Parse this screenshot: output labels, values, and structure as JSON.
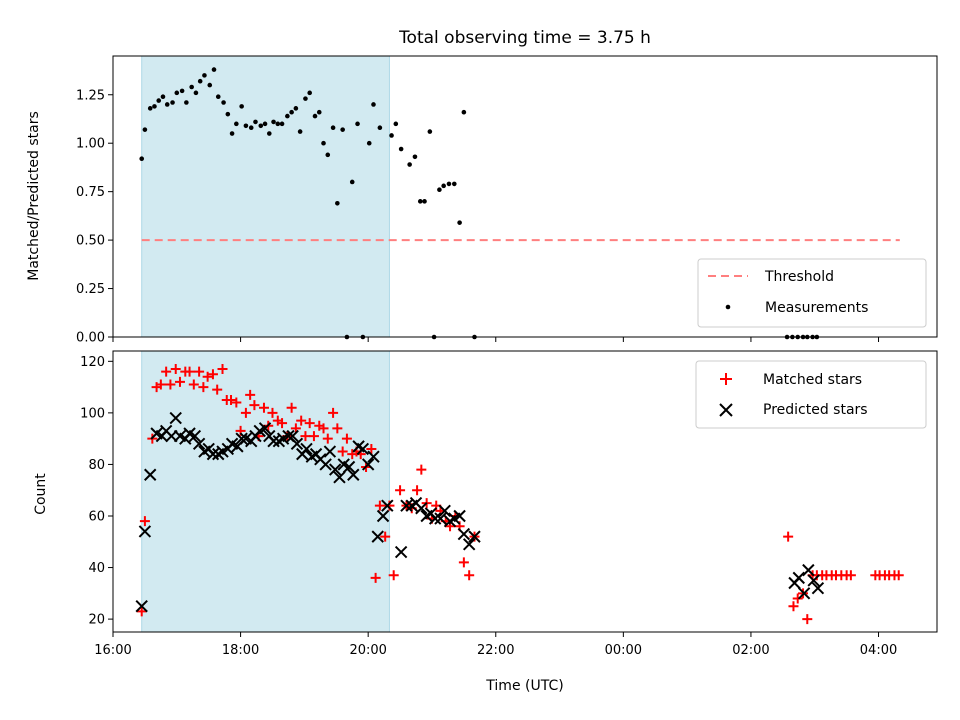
{
  "chart_data": [
    {
      "type": "scatter",
      "title": "Total observing time = 3.75 h",
      "xlabel": "",
      "ylabel": "Matched/Predicted stars",
      "ylim": [
        0,
        1.45
      ],
      "xlim": [
        "16:00",
        "04:55"
      ],
      "yticks": [
        "0.00",
        "0.25",
        "0.50",
        "0.75",
        "1.00",
        "1.25"
      ],
      "shaded_interval": [
        "16:27",
        "20:20"
      ],
      "shaded_color": "#add8e6",
      "legend_position": "lower-right",
      "series": [
        {
          "name": "Threshold",
          "style": "dashed-line",
          "color": "#ff7f7f",
          "x": [
            "16:27",
            "04:20"
          ],
          "y": [
            0.5,
            0.5
          ]
        },
        {
          "name": "Measurements",
          "style": "dot",
          "color": "#000000",
          "x": [
            "16:27",
            "16:30",
            "16:35",
            "16:39",
            "16:43",
            "16:47",
            "16:51",
            "16:56",
            "17:00",
            "17:05",
            "17:09",
            "17:14",
            "17:18",
            "17:22",
            "17:26",
            "17:31",
            "17:35",
            "17:39",
            "17:44",
            "17:48",
            "17:52",
            "17:56",
            "18:01",
            "18:05",
            "18:10",
            "18:14",
            "18:19",
            "18:23",
            "18:27",
            "18:31",
            "18:35",
            "18:39",
            "18:44",
            "18:48",
            "18:52",
            "18:56",
            "19:01",
            "19:05",
            "19:10",
            "19:14",
            "19:18",
            "19:22",
            "19:27",
            "19:31",
            "19:36",
            "19:40",
            "19:45",
            "19:50",
            "19:55",
            "20:01",
            "20:05",
            "20:11",
            "20:22",
            "20:26",
            "20:31",
            "20:39",
            "20:44",
            "20:49",
            "20:53",
            "20:58",
            "21:02",
            "21:07",
            "21:11",
            "21:16",
            "21:21",
            "21:26",
            "21:30",
            "21:40",
            "02:34",
            "02:39",
            "02:44",
            "02:49",
            "02:53",
            "02:58",
            "03:02"
          ],
          "y": [
            0.92,
            1.07,
            1.18,
            1.19,
            1.22,
            1.24,
            1.2,
            1.21,
            1.26,
            1.27,
            1.21,
            1.29,
            1.26,
            1.32,
            1.35,
            1.3,
            1.38,
            1.24,
            1.21,
            1.15,
            1.05,
            1.1,
            1.19,
            1.09,
            1.08,
            1.11,
            1.09,
            1.1,
            1.05,
            1.11,
            1.1,
            1.1,
            1.14,
            1.16,
            1.18,
            1.06,
            1.23,
            1.26,
            1.14,
            1.16,
            1.0,
            0.94,
            1.08,
            0.69,
            1.07,
            0.0,
            0.8,
            1.1,
            0.0,
            1.0,
            1.2,
            1.08,
            1.04,
            1.1,
            0.97,
            0.89,
            0.93,
            0.7,
            0.7,
            1.06,
            0.0,
            0.76,
            0.78,
            0.79,
            0.79,
            0.59,
            1.16,
            0.0,
            0.0,
            0.0,
            0.0,
            0.0,
            0.0,
            0.0,
            0.0
          ]
        }
      ]
    },
    {
      "type": "scatter",
      "title": "",
      "xlabel": "Time (UTC)",
      "ylabel": "Count",
      "ylim": [
        15,
        124
      ],
      "xlim": [
        "16:00",
        "04:55"
      ],
      "xticks": [
        "16:00",
        "18:00",
        "20:00",
        "22:00",
        "00:00",
        "02:00",
        "04:00"
      ],
      "yticks": [
        "20",
        "40",
        "60",
        "80",
        "100",
        "120"
      ],
      "shaded_interval": [
        "16:27",
        "20:20"
      ],
      "shaded_color": "#add8e6",
      "legend_position": "upper-right",
      "series": [
        {
          "name": "Matched stars",
          "marker": "+",
          "color": "#ff0000",
          "x": [
            "16:27",
            "16:30",
            "16:37",
            "16:41",
            "16:45",
            "16:50",
            "16:54",
            "16:59",
            "17:03",
            "17:08",
            "17:12",
            "17:16",
            "17:21",
            "17:25",
            "17:29",
            "17:34",
            "17:38",
            "17:43",
            "17:47",
            "17:51",
            "17:56",
            "18:00",
            "18:05",
            "18:09",
            "18:13",
            "18:17",
            "18:22",
            "18:26",
            "18:30",
            "18:35",
            "18:39",
            "18:44",
            "18:48",
            "18:52",
            "18:57",
            "19:01",
            "19:05",
            "19:09",
            "19:14",
            "19:18",
            "19:22",
            "19:27",
            "19:31",
            "19:36",
            "19:40",
            "19:45",
            "19:49",
            "19:53",
            "19:58",
            "20:03",
            "20:07",
            "20:11",
            "20:16",
            "20:20",
            "20:24",
            "20:30",
            "20:36",
            "20:41",
            "20:46",
            "20:50",
            "20:55",
            "21:00",
            "21:04",
            "21:08",
            "21:13",
            "21:17",
            "21:22",
            "21:26",
            "21:30",
            "21:35",
            "21:40",
            "02:35",
            "02:40",
            "02:44",
            "02:49",
            "02:53",
            "02:58",
            "03:02",
            "03:07",
            "03:11",
            "03:16",
            "03:20",
            "03:25",
            "03:30",
            "03:34",
            "03:57",
            "04:01",
            "04:06",
            "04:10",
            "04:15",
            "04:19"
          ],
          "y": [
            23,
            58,
            90,
            110,
            111,
            116,
            111,
            117,
            112,
            116,
            116,
            111,
            116,
            110,
            114,
            115,
            109,
            117,
            105,
            105,
            104,
            93,
            100,
            107,
            103,
            91,
            102,
            95,
            100,
            97,
            96,
            91,
            102,
            94,
            97,
            91,
            96,
            91,
            95,
            94,
            90,
            100,
            94,
            85,
            90,
            84,
            85,
            84,
            79,
            86,
            36,
            64,
            52,
            64,
            37,
            70,
            64,
            63,
            70,
            78,
            65,
            59,
            64,
            62,
            58,
            56,
            60,
            56,
            42,
            37,
            52,
            52,
            25,
            28,
            30,
            20,
            37,
            37,
            37,
            37,
            37,
            37,
            37,
            37,
            37,
            37,
            37,
            37,
            37,
            37,
            37
          ]
        },
        {
          "name": "Predicted stars",
          "marker": "x",
          "color": "#000000",
          "x": [
            "16:27",
            "16:30",
            "16:35",
            "16:41",
            "16:46",
            "16:50",
            "16:55",
            "16:59",
            "17:03",
            "17:08",
            "17:12",
            "17:17",
            "17:21",
            "17:26",
            "17:30",
            "17:34",
            "17:39",
            "17:43",
            "17:48",
            "17:52",
            "17:57",
            "18:01",
            "18:05",
            "18:10",
            "18:14",
            "18:18",
            "18:23",
            "18:27",
            "18:31",
            "18:36",
            "18:40",
            "18:45",
            "18:49",
            "18:53",
            "18:58",
            "19:02",
            "19:07",
            "19:11",
            "19:15",
            "19:20",
            "19:24",
            "19:29",
            "19:33",
            "19:37",
            "19:42",
            "19:46",
            "19:51",
            "19:55",
            "20:00",
            "20:05",
            "20:09",
            "20:14",
            "20:18",
            "20:31",
            "20:36",
            "20:41",
            "20:45",
            "20:50",
            "20:55",
            "20:59",
            "21:03",
            "21:08",
            "21:12",
            "21:17",
            "21:21",
            "21:26",
            "21:30",
            "21:35",
            "21:40",
            "02:41",
            "02:45",
            "02:50",
            "02:54",
            "02:59",
            "03:03"
          ],
          "y": [
            25,
            54,
            76,
            92,
            91,
            93,
            91,
            98,
            91,
            90,
            92,
            91,
            88,
            85,
            86,
            84,
            84,
            85,
            86,
            88,
            87,
            90,
            90,
            89,
            91,
            93,
            94,
            91,
            89,
            89,
            90,
            91,
            91,
            88,
            84,
            86,
            83,
            84,
            82,
            80,
            85,
            78,
            75,
            80,
            79,
            76,
            87,
            86,
            80,
            83,
            52,
            60,
            64,
            46,
            64,
            64,
            65,
            63,
            60,
            61,
            59,
            59,
            62,
            58,
            59,
            60,
            53,
            49,
            52,
            34,
            36,
            30,
            39,
            35,
            32
          ]
        }
      ]
    }
  ]
}
